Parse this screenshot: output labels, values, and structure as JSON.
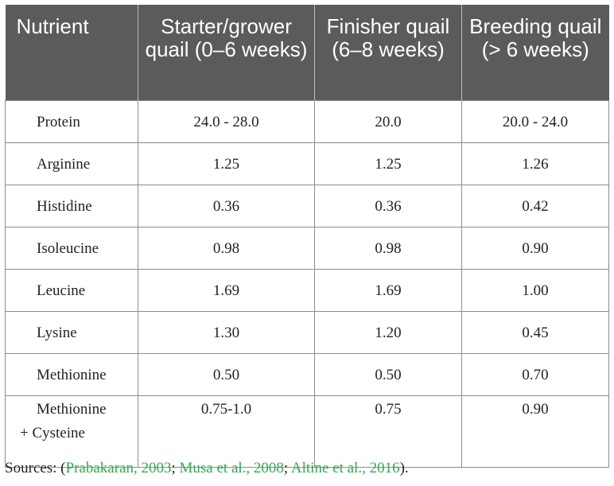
{
  "table": {
    "headers": [
      "Nutrient",
      "Starter/grower quail (0–6 weeks)",
      "Finisher quail (6–8 weeks)",
      "Breeding quail (> 6 weeks)"
    ],
    "rows": [
      {
        "nutrient": "Protein",
        "starter": "24.0 - 28.0",
        "finisher": "20.0",
        "breeding": "20.0 - 24.0"
      },
      {
        "nutrient": "Arginine",
        "starter": "1.25",
        "finisher": "1.25",
        "breeding": "1.26"
      },
      {
        "nutrient": "Histidine",
        "starter": "0.36",
        "finisher": "0.36",
        "breeding": "0.42"
      },
      {
        "nutrient": "Isoleucine",
        "starter": "0.98",
        "finisher": "0.98",
        "breeding": "0.90"
      },
      {
        "nutrient": "Leucine",
        "starter": "1.69",
        "finisher": "1.69",
        "breeding": "1.00"
      },
      {
        "nutrient": "Lysine",
        "starter": "1.30",
        "finisher": "1.20",
        "breeding": "0.45"
      },
      {
        "nutrient": "Methionine",
        "starter": "0.50",
        "finisher": "0.50",
        "breeding": "0.70"
      },
      {
        "nutrient_line1": "Methionine",
        "nutrient_line2": "+ Cysteine",
        "starter": "0.75-1.0",
        "finisher": "0.75",
        "breeding": "0.90"
      }
    ]
  },
  "sources": {
    "prefix": "Sources: (",
    "citations": [
      "Prabakaran, 2003",
      "Musa et al., 2008",
      "Altine et al., 2016"
    ],
    "separator": "; ",
    "suffix": ")."
  },
  "colors": {
    "header_bg": "#5b5b5b",
    "header_text": "#ffffff",
    "citation_link": "#34a853",
    "border": "#8c8c8c"
  }
}
